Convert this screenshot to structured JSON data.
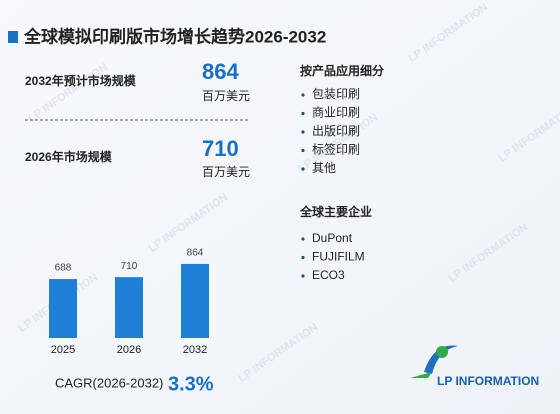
{
  "title": "全球模拟印刷版市场增长趋势2026-2032",
  "stats": [
    {
      "label": "2032年预计市场规模",
      "value": 864,
      "unit": "百万美元"
    },
    {
      "label": "2026年市场规模",
      "value": 710,
      "unit": "百万美元"
    }
  ],
  "segments": {
    "title": "按产品应用细分",
    "items": [
      "包装印刷",
      "商业印刷",
      "出版印刷",
      "标签印刷",
      "其他"
    ]
  },
  "companies": {
    "title": "全球主要企业",
    "items": [
      "DuPont",
      "FUJIFILM",
      "ECO3"
    ]
  },
  "cagr": {
    "label": "CAGR(2026-2032)",
    "value": "3.3%"
  },
  "logo": "LP INFORMATION",
  "watermark": "LP INFORMATION",
  "chart_data": {
    "type": "bar",
    "categories": [
      "2025",
      "2026",
      "2032"
    ],
    "values": [
      688,
      710,
      864
    ],
    "color": "#1f7fd6"
  }
}
